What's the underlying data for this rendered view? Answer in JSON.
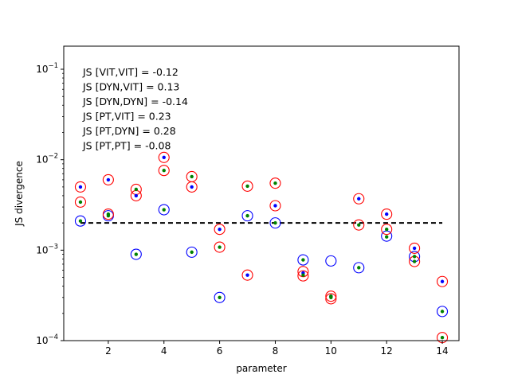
{
  "chart_data": {
    "type": "scatter",
    "title": "",
    "xlabel": "parameter",
    "ylabel": "JS divergence",
    "xlim": [
      0.4,
      14.6
    ],
    "ylim": [
      0.0001,
      0.18
    ],
    "yscale": "log",
    "grid": false,
    "x_ticks": [
      2,
      4,
      6,
      8,
      10,
      12,
      14
    ],
    "y_ticks": [
      {
        "value": 0.0001,
        "base": "10",
        "exp": "−4"
      },
      {
        "value": 0.001,
        "base": "10",
        "exp": "−3"
      },
      {
        "value": 0.01,
        "base": "10",
        "exp": "−2"
      },
      {
        "value": 0.1,
        "base": "10",
        "exp": "−1"
      }
    ],
    "reference_line": {
      "y": 0.002,
      "x_range": [
        1,
        14
      ],
      "style": "dashed",
      "color": "#000000"
    },
    "annotations": [
      "JS [VIT,VIT] = -0.12",
      "JS [DYN,VIT] = 0.13",
      "JS [DYN,DYN] = -0.14",
      "JS [PT,VIT] = 0.23",
      "JS [PT,DYN] = 0.28",
      "JS [PT,PT] = -0.08"
    ],
    "series": [
      {
        "marker": "open-circle",
        "color": "#0000ff",
        "x": [
          1,
          2,
          3,
          4,
          5,
          6,
          7,
          8,
          9,
          10,
          11,
          12,
          13
        ],
        "y": [
          0.0021,
          0.0024,
          0.0009,
          0.0028,
          0.00095,
          0.0003,
          0.0024,
          0.002,
          0.00078,
          0.00076,
          0.00064,
          0.00143,
          0.00085
        ]
      },
      {
        "marker": "open-circle",
        "color": "#ff0000",
        "x": [
          1,
          1,
          2,
          2,
          3,
          3,
          4,
          4,
          5,
          5,
          6,
          6,
          7,
          7,
          8,
          8,
          9,
          9,
          10,
          10,
          11,
          11,
          12,
          12,
          13,
          13,
          14,
          14
        ],
        "y": [
          0.005,
          0.0034,
          0.006,
          0.0025,
          0.0047,
          0.004,
          0.0106,
          0.0076,
          0.0065,
          0.005,
          0.0017,
          0.00108,
          0.0051,
          0.00053,
          0.0055,
          0.0031,
          0.00058,
          0.00052,
          0.00031,
          0.00029,
          0.0037,
          0.0019,
          0.0025,
          0.0017,
          0.00105,
          0.00075,
          0.00045,
          0.000108
        ]
      },
      {
        "marker": "dot",
        "color": "#0000ff",
        "x": [
          1,
          2,
          3,
          4,
          5,
          6,
          7,
          8,
          9,
          10,
          11,
          12,
          13,
          14
        ],
        "y": [
          0.005,
          0.006,
          0.004,
          0.0106,
          0.005,
          0.0017,
          0.00053,
          0.0031,
          0.00056,
          0.00031,
          0.0037,
          0.0025,
          0.00105,
          0.00045
        ]
      },
      {
        "marker": "dot",
        "color": "#008000",
        "x": [
          1,
          2,
          3,
          4,
          5,
          6,
          7,
          8,
          9,
          10,
          11,
          12,
          13,
          14
        ],
        "y": [
          0.0034,
          0.0024,
          0.0047,
          0.0076,
          0.0065,
          0.00108,
          0.0051,
          0.0055,
          0.00078,
          0.0003,
          0.0019,
          0.0017,
          0.00075,
          0.000108
        ]
      },
      {
        "marker": "dot",
        "color": "#008000",
        "x": [
          1,
          2,
          3,
          4,
          5,
          6,
          7,
          8,
          9,
          10,
          11,
          12,
          13,
          14
        ],
        "y": [
          0.0021,
          0.0025,
          0.0009,
          0.0028,
          0.00095,
          0.0003,
          0.0024,
          0.002,
          0.00053,
          0.00031,
          0.00064,
          0.0014,
          0.00085,
          0.00021
        ]
      }
    ],
    "extra_points": [
      {
        "marker": "open-circle",
        "color": "#0000ff",
        "x": 14,
        "y": 0.00021
      }
    ]
  }
}
